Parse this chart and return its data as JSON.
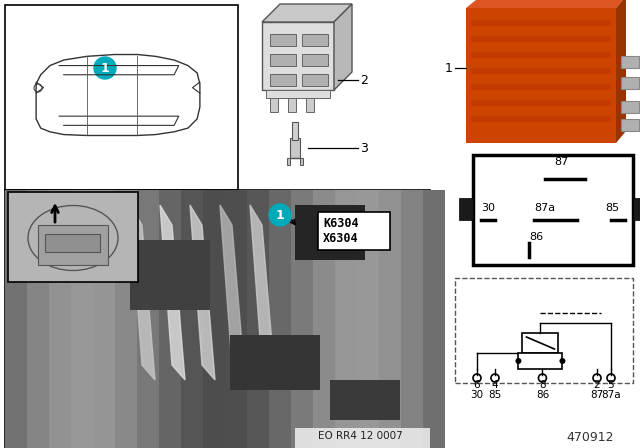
{
  "bg_color": "#ffffff",
  "part_number": "470912",
  "doc_ref": "EO RR4 12 0007",
  "relay_orange": "#cc4400",
  "relay_orange_light": "#e05010",
  "photo_bg": "#909090",
  "photo_bg2": "#b0b0b0",
  "inset_bg": "#c8c8c8",
  "car_box_bg": "#ffffff",
  "label_box_bg": "#ffffff",
  "cyan_badge": "#00aabb",
  "dark_gray": "#404040",
  "mid_gray": "#707070",
  "light_gray": "#d0d0d0",
  "connector_gray": "#c8c8c8",
  "pin_numbers": [
    "6",
    "4",
    "8",
    "2",
    "5"
  ],
  "pin_names": [
    "30",
    "85",
    "86",
    "87",
    "87a"
  ],
  "relay_pins_left": "30",
  "relay_pins_right": "85",
  "relay_pin_top": "87",
  "relay_pin_mid": "87a",
  "relay_pin_bot": "86"
}
